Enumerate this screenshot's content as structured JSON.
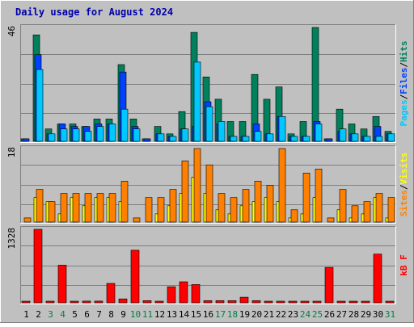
{
  "title": "Daily usage for August 2024",
  "colors": {
    "background": "#c0c0c0",
    "title": "#0000aa",
    "hits": "#00805c",
    "files": "#0040ff",
    "pages": "#00c8ff",
    "visits": "#ffff00",
    "sites": "#ff8000",
    "kbytes": "#ff0000",
    "weekday_label": "#000000",
    "weekend_label": "#008040"
  },
  "chart_data": [
    {
      "type": "bar",
      "name": "hits-files-pages",
      "axis_max_label": "46",
      "ylim": [
        0,
        46
      ],
      "legend": [
        {
          "text": "Pages",
          "color": "#00c8ff"
        },
        {
          "text": "Files",
          "color": "#0040ff"
        },
        {
          "text": "Hits",
          "color": "#00805c"
        }
      ],
      "separator": "/",
      "categories": [
        "1",
        "2",
        "3",
        "4",
        "5",
        "6",
        "7",
        "8",
        "9",
        "10",
        "11",
        "12",
        "13",
        "14",
        "15",
        "16",
        "17",
        "18",
        "19",
        "20",
        "21",
        "22",
        "23",
        "24",
        "25",
        "26",
        "27",
        "28",
        "29",
        "30",
        "31"
      ],
      "series": [
        {
          "name": "Hits",
          "color": "#00805c",
          "values": [
            1,
            43,
            5,
            7,
            7,
            6,
            9,
            9,
            31,
            9,
            1,
            6,
            3,
            12,
            44,
            26,
            17,
            8,
            8,
            27,
            17,
            22,
            3,
            8,
            46,
            1,
            13,
            7,
            5,
            10,
            4
          ]
        },
        {
          "name": "Files",
          "color": "#0040ff",
          "values": [
            1,
            35,
            3,
            7,
            6,
            6,
            7,
            7,
            28,
            6,
            1,
            3,
            2,
            5,
            6,
            16,
            7,
            2,
            2,
            7,
            3,
            10,
            2,
            2,
            8,
            1,
            4,
            3,
            2,
            6,
            3
          ]
        },
        {
          "name": "Pages",
          "color": "#00c8ff",
          "values": [
            0,
            29,
            3,
            5,
            5,
            4,
            6,
            7,
            13,
            5,
            0,
            3,
            2,
            5,
            32,
            14,
            8,
            2,
            2,
            4,
            3,
            10,
            2,
            2,
            7,
            0,
            5,
            3,
            2,
            2,
            3
          ]
        }
      ]
    },
    {
      "type": "bar",
      "name": "visits-sites",
      "axis_max_label": "18",
      "ylim": [
        0,
        18
      ],
      "legend": [
        {
          "text": "Sites",
          "color": "#ff8000"
        },
        {
          "text": "Visits",
          "color": "#ffff00"
        }
      ],
      "separator": "/",
      "categories": [
        "1",
        "2",
        "3",
        "4",
        "5",
        "6",
        "7",
        "8",
        "9",
        "10",
        "11",
        "12",
        "13",
        "14",
        "15",
        "16",
        "17",
        "18",
        "19",
        "20",
        "21",
        "22",
        "23",
        "24",
        "25",
        "26",
        "27",
        "28",
        "29",
        "30",
        "31"
      ],
      "series": [
        {
          "name": "Visits",
          "color": "#ffff00",
          "values": [
            0,
            6,
            5,
            2,
            6,
            4,
            6,
            6,
            5,
            0,
            0,
            2,
            4,
            7,
            11,
            7,
            3,
            2,
            4,
            5,
            6,
            5,
            1,
            2,
            6,
            0,
            3,
            1,
            2,
            6,
            1
          ]
        },
        {
          "name": "Sites",
          "color": "#ff8000",
          "values": [
            1,
            8,
            5,
            7,
            7,
            7,
            7,
            7,
            10,
            1,
            6,
            6,
            8,
            15,
            18,
            14,
            7,
            6,
            8,
            10,
            9,
            18,
            3,
            12,
            13,
            1,
            8,
            4,
            5,
            7,
            6
          ]
        }
      ]
    },
    {
      "type": "bar",
      "name": "kbytes",
      "axis_max_label": "1328",
      "ylim": [
        0,
        1328
      ],
      "legend": [
        {
          "text": "kB F",
          "color": "#ff0000"
        }
      ],
      "categories": [
        "1",
        "2",
        "3",
        "4",
        "5",
        "6",
        "7",
        "8",
        "9",
        "10",
        "11",
        "12",
        "13",
        "14",
        "15",
        "16",
        "17",
        "18",
        "19",
        "20",
        "21",
        "22",
        "23",
        "24",
        "25",
        "26",
        "27",
        "28",
        "29",
        "30",
        "31"
      ],
      "series": [
        {
          "name": "kB F",
          "color": "#ff0000",
          "values": [
            10,
            1328,
            10,
            680,
            10,
            30,
            30,
            350,
            70,
            950,
            40,
            10,
            290,
            380,
            330,
            40,
            40,
            40,
            100,
            40,
            20,
            20,
            20,
            20,
            10,
            640,
            10,
            20,
            20,
            880,
            10
          ]
        }
      ]
    }
  ],
  "x_labels": [
    {
      "text": "1",
      "weekend": false
    },
    {
      "text": "2",
      "weekend": false
    },
    {
      "text": "3",
      "weekend": true
    },
    {
      "text": "4",
      "weekend": true
    },
    {
      "text": "5",
      "weekend": false
    },
    {
      "text": "6",
      "weekend": false
    },
    {
      "text": "7",
      "weekend": false
    },
    {
      "text": "8",
      "weekend": false
    },
    {
      "text": "9",
      "weekend": false
    },
    {
      "text": "10",
      "weekend": true
    },
    {
      "text": "11",
      "weekend": true
    },
    {
      "text": "12",
      "weekend": false
    },
    {
      "text": "13",
      "weekend": false
    },
    {
      "text": "14",
      "weekend": false
    },
    {
      "text": "15",
      "weekend": false
    },
    {
      "text": "16",
      "weekend": false
    },
    {
      "text": "17",
      "weekend": true
    },
    {
      "text": "18",
      "weekend": true
    },
    {
      "text": "19",
      "weekend": false
    },
    {
      "text": "20",
      "weekend": false
    },
    {
      "text": "21",
      "weekend": false
    },
    {
      "text": "22",
      "weekend": false
    },
    {
      "text": "23",
      "weekend": false
    },
    {
      "text": "24",
      "weekend": true
    },
    {
      "text": "25",
      "weekend": true
    },
    {
      "text": "26",
      "weekend": false
    },
    {
      "text": "27",
      "weekend": false
    },
    {
      "text": "28",
      "weekend": false
    },
    {
      "text": "29",
      "weekend": false
    },
    {
      "text": "30",
      "weekend": false
    },
    {
      "text": "31",
      "weekend": true
    }
  ]
}
